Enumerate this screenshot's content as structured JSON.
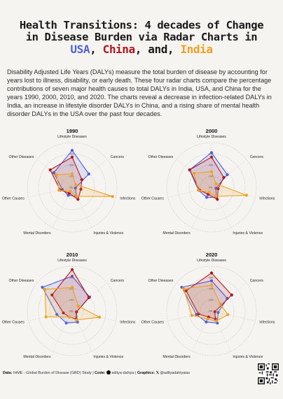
{
  "title": {
    "line1": "Health Transitions: 4 decades of Change",
    "line2": "in Disease Burden via Radar Charts in",
    "usa": "USA",
    "sep1": ", ",
    "china": "China",
    "sep2": ", and, ",
    "india": "India"
  },
  "description": "Disability Adjusted Life Years (DALYs) measure the total burden of disease by accounting for years lost to illness, disability, or early death. These four radar charts compare the percentage contributions of seven major health causes to total DALYs in India, USA, and China for the years 1990, 2000, 2010, and 2020. The charts reveal a decrease in infection-related DALYs in India, an increase in lifestyle disorder DALYs in China, and a rising share of mental health disorder DALYs in the USA over the past four decades.",
  "footer": {
    "data_label": "Data:",
    "data_value": "IHME - Global Burden of Disease (GBD) Study",
    "code_label": "Code:",
    "code_value": "aditya-dahiya",
    "graphics_label": "Graphics:",
    "graphics_value": "@adityadahiyaias",
    "sep": "|"
  },
  "chart_data": [
    {
      "type": "radar",
      "title": "1990",
      "axes": [
        "Lifestyle Diseases",
        "Cancers",
        "Infections",
        "Injuries & Violence",
        "Mental Disorders",
        "Other Causes",
        "Other Diseases"
      ],
      "ring_labels": [
        "0%",
        "10%",
        "20%",
        "30%"
      ],
      "rmax": 40,
      "series": [
        {
          "name": "USA",
          "color": "#4f5fd6",
          "values": [
            33,
            19,
            3,
            9,
            8,
            9,
            21
          ]
        },
        {
          "name": "China",
          "color": "#b3151d",
          "values": [
            27,
            11,
            8,
            12,
            6,
            11,
            25
          ]
        },
        {
          "name": "India",
          "color": "#f0a01e",
          "values": [
            12,
            4,
            37,
            9,
            4,
            12,
            18
          ]
        }
      ]
    },
    {
      "type": "radar",
      "title": "2000",
      "axes": [
        "Lifestyle Diseases",
        "Cancers",
        "Infections",
        "Injuries & Violence",
        "Mental Disorders",
        "Other Causes",
        "Other Diseases"
      ],
      "ring_labels": [
        "0%",
        "10%",
        "20%",
        "30%"
      ],
      "rmax": 40,
      "series": [
        {
          "name": "USA",
          "color": "#4f5fd6",
          "values": [
            31,
            18,
            4,
            10,
            10,
            12,
            25
          ]
        },
        {
          "name": "China",
          "color": "#b3151d",
          "values": [
            27,
            14,
            6,
            12,
            7,
            11,
            25
          ]
        },
        {
          "name": "India",
          "color": "#f0a01e",
          "values": [
            14,
            5,
            32,
            9,
            5,
            12,
            20
          ]
        }
      ]
    },
    {
      "type": "radar",
      "title": "2010",
      "axes": [
        "Lifestyle Diseases",
        "Cancers",
        "Infections",
        "Injuries & Violence",
        "Mental Disorders",
        "Other Causes",
        "Other Diseases"
      ],
      "ring_labels": [
        "0%",
        "10%",
        "20%",
        "30%"
      ],
      "rmax": 40,
      "series": [
        {
          "name": "USA",
          "color": "#4f5fd6",
          "values": [
            31,
            20,
            4,
            11,
            12,
            14,
            34
          ]
        },
        {
          "name": "China",
          "color": "#b3151d",
          "values": [
            37,
            19,
            4,
            8,
            6,
            8,
            23
          ]
        },
        {
          "name": "India",
          "color": "#f0a01e",
          "values": [
            21,
            7,
            25,
            9,
            6,
            24,
            31
          ]
        }
      ]
    },
    {
      "type": "radar",
      "title": "2020",
      "axes": [
        "Lifestyle Diseases",
        "Cancers",
        "Infections",
        "Injuries & Violence",
        "Mental Disorders",
        "Other Causes",
        "Other Diseases"
      ],
      "ring_labels": [
        "0%",
        "10%",
        "20%",
        "30%"
      ],
      "rmax": 40,
      "series": [
        {
          "name": "USA",
          "color": "#4f5fd6",
          "values": [
            27,
            18,
            6,
            12,
            11,
            14,
            34
          ]
        },
        {
          "name": "China",
          "color": "#b3151d",
          "values": [
            34,
            23,
            3,
            8,
            6,
            12,
            29
          ]
        },
        {
          "name": "India",
          "color": "#f0a01e",
          "values": [
            23,
            10,
            15,
            10,
            8,
            18,
            32
          ]
        }
      ]
    }
  ]
}
